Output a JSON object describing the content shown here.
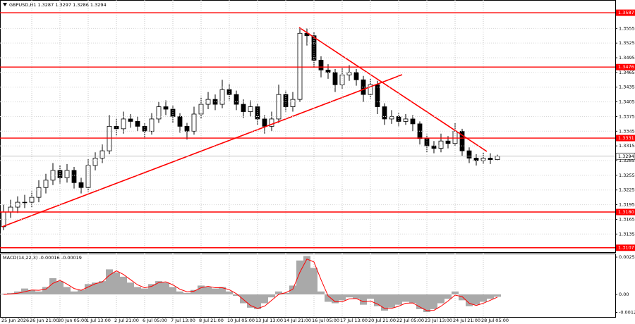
{
  "chart_data": [
    {
      "type": "candlestick",
      "title": "GBPUSD,H1  1.3287 1.3297 1.3286 1.3294",
      "categories": [
        "25 Jun 2026",
        null,
        null,
        null,
        "26 Jun 21:00",
        null,
        null,
        null,
        "30 Jun 05:00",
        null,
        null,
        null,
        "1 Jul 13:00",
        null,
        null,
        null,
        "2 Jul 21:00",
        null,
        null,
        null,
        "6 Jul 05:00",
        null,
        null,
        null,
        "7 Jul 13:00",
        null,
        null,
        null,
        "8 Jul 21:00",
        null,
        null,
        null,
        "10 Jul 05:00",
        null,
        null,
        null,
        "13 Jul 13:00",
        null,
        null,
        null,
        "14 Jul 21:00",
        null,
        null,
        null,
        "16 Jul 05:00",
        null,
        null,
        null,
        "17 Jul 13:00",
        null,
        null,
        null,
        "20 Jul 21:00",
        null,
        null,
        null,
        "22 Jul 05:00",
        null,
        null,
        null,
        "23 Jul 13:00",
        null,
        null,
        null,
        "24 Jul 21:00",
        null,
        null,
        null,
        "28 Jul 05:00",
        null,
        null
      ],
      "open": [
        1.315,
        1.318,
        1.319,
        1.32,
        1.32,
        1.321,
        1.323,
        1.3245,
        1.3265,
        1.325,
        1.3265,
        1.324,
        1.323,
        1.3275,
        1.329,
        1.3305,
        1.3355,
        1.335,
        1.337,
        1.3365,
        1.3355,
        1.3345,
        1.337,
        1.3395,
        1.339,
        1.3375,
        1.3355,
        1.3345,
        1.338,
        1.34,
        1.341,
        1.34,
        1.343,
        1.342,
        1.34,
        1.3385,
        1.3395,
        1.337,
        1.3355,
        1.337,
        1.342,
        1.3395,
        1.341,
        1.3545,
        1.354,
        1.349,
        1.347,
        1.3465,
        1.344,
        1.346,
        1.3465,
        1.345,
        1.342,
        1.344,
        1.3395,
        1.337,
        1.3375,
        1.3365,
        1.337,
        1.336,
        1.333,
        1.3315,
        1.331,
        1.3325,
        1.332,
        1.3345,
        1.3305,
        1.329,
        1.3285,
        1.329,
        1.3287
      ],
      "high": [
        1.3195,
        1.3205,
        1.3212,
        1.3215,
        1.3222,
        1.3245,
        1.3258,
        1.328,
        1.3275,
        1.3278,
        1.3272,
        1.325,
        1.3288,
        1.3302,
        1.3318,
        1.3378,
        1.3372,
        1.3385,
        1.338,
        1.3375,
        1.3362,
        1.3382,
        1.3405,
        1.3408,
        1.3398,
        1.3382,
        1.3362,
        1.3395,
        1.3415,
        1.3425,
        1.342,
        1.345,
        1.3442,
        1.3428,
        1.341,
        1.3408,
        1.3402,
        1.3378,
        1.3385,
        1.344,
        1.3428,
        1.3425,
        1.3557,
        1.3555,
        1.3548,
        1.3498,
        1.3482,
        1.3472,
        1.3475,
        1.348,
        1.3472,
        1.3458,
        1.3452,
        1.3448,
        1.3402,
        1.3388,
        1.3382,
        1.338,
        1.3378,
        1.3365,
        1.3338,
        1.3325,
        1.334,
        1.3335,
        1.3362,
        1.335,
        1.3312,
        1.3298,
        1.3302,
        1.33,
        1.3297
      ],
      "low": [
        1.3143,
        1.3168,
        1.3178,
        1.3188,
        1.319,
        1.32,
        1.3218,
        1.3235,
        1.3238,
        1.324,
        1.3228,
        1.3218,
        1.3222,
        1.3265,
        1.328,
        1.3298,
        1.3335,
        1.334,
        1.3352,
        1.3345,
        1.333,
        1.3338,
        1.3362,
        1.3378,
        1.3362,
        1.3342,
        1.3328,
        1.3338,
        1.337,
        1.339,
        1.3388,
        1.3392,
        1.3408,
        1.3388,
        1.3372,
        1.3375,
        1.3358,
        1.334,
        1.3345,
        1.3362,
        1.3385,
        1.3385,
        1.3405,
        1.352,
        1.3475,
        1.3455,
        1.3452,
        1.3425,
        1.3432,
        1.3448,
        1.3438,
        1.3405,
        1.3412,
        1.338,
        1.3358,
        1.336,
        1.3355,
        1.3358,
        1.3345,
        1.3318,
        1.3302,
        1.33,
        1.3302,
        1.331,
        1.3315,
        1.3295,
        1.328,
        1.3275,
        1.3278,
        1.3278,
        1.3286
      ],
      "close": [
        1.318,
        1.319,
        1.32,
        1.32,
        1.321,
        1.323,
        1.3245,
        1.3265,
        1.325,
        1.3265,
        1.324,
        1.323,
        1.3275,
        1.329,
        1.3305,
        1.3355,
        1.335,
        1.337,
        1.3365,
        1.3355,
        1.3345,
        1.337,
        1.3395,
        1.339,
        1.3375,
        1.3355,
        1.3345,
        1.338,
        1.34,
        1.341,
        1.34,
        1.343,
        1.342,
        1.34,
        1.3385,
        1.3395,
        1.337,
        1.3355,
        1.337,
        1.342,
        1.3395,
        1.341,
        1.3545,
        1.354,
        1.349,
        1.347,
        1.3465,
        1.344,
        1.346,
        1.3465,
        1.345,
        1.342,
        1.344,
        1.3395,
        1.337,
        1.3375,
        1.3365,
        1.337,
        1.336,
        1.333,
        1.3315,
        1.331,
        1.3325,
        1.332,
        1.3345,
        1.3305,
        1.329,
        1.3285,
        1.329,
        1.3287,
        1.3294
      ],
      "color": "#000000",
      "ylim": [
        1.3098,
        1.3613
      ],
      "yticks": [
        1.3555,
        1.3525,
        1.3495,
        1.3465,
        1.3435,
        1.3405,
        1.3375,
        1.3345,
        1.3315,
        1.3285,
        1.3255,
        1.3225,
        1.3195,
        1.3165,
        1.3135
      ],
      "levels": [
        1.3587,
        1.3476,
        1.3331,
        {
          "value": 1.318,
          "label": "1.3180"
        },
        1.3107
      ],
      "level_color": "#ff0000",
      "grid": true
    },
    {
      "type": "macd",
      "title": "MACD(14,22,3) -0.00016 -0.00019",
      "histogram": [
        5e-05,
        0.0001,
        0.0002,
        0.0004,
        0.0003,
        0.0002,
        0.0005,
        0.0011,
        0.0009,
        0.0005,
        0.0002,
        0.0003,
        0.0007,
        0.0008,
        0.0009,
        0.0017,
        0.0015,
        0.0012,
        0.0008,
        0.0005,
        0.0004,
        0.0007,
        0.0009,
        0.0008,
        0.0005,
        0.0002,
        0.0001,
        0.0003,
        0.0006,
        0.0005,
        0.0004,
        0.0005,
        0.0002,
        -0.0001,
        -0.0006,
        -0.0009,
        -0.001,
        -0.0006,
        -0.0002,
        0.0002,
        0.0001,
        0.0006,
        0.0023,
        0.0026,
        0.0018,
        0.0002,
        -0.0005,
        -0.0006,
        -0.0004,
        -0.0002,
        -0.0003,
        -0.0007,
        -0.0003,
        -0.0008,
        -0.0011,
        -0.0009,
        -0.0007,
        -0.0005,
        -0.0006,
        -0.001,
        -0.0012,
        -0.001,
        -0.0006,
        -0.0003,
        0.0002,
        -0.0004,
        -0.0008,
        -0.0007,
        -0.0005,
        -0.0003,
        -0.00016
      ],
      "signal": [
        0,
        3e-05,
        8e-05,
        0.00018,
        0.0003,
        0.00028,
        0.00035,
        0.00075,
        0.00095,
        0.0007,
        0.0004,
        0.00028,
        0.0005,
        0.00072,
        0.00085,
        0.0013,
        0.0016,
        0.00135,
        0.001,
        0.00065,
        0.00045,
        0.00055,
        0.0008,
        0.00085,
        0.00065,
        0.00035,
        0.00018,
        0.00022,
        0.00045,
        0.00055,
        0.00045,
        0.00045,
        0.00032,
        5e-05,
        -0.00035,
        -0.00075,
        -0.00095,
        -0.0008,
        -0.0004,
        0,
        0.00012,
        0.00035,
        0.0015,
        0.0024,
        0.0022,
        0.001,
        -0.0001,
        -0.0005,
        -0.0005,
        -0.0003,
        -0.00028,
        -0.0005,
        -0.00045,
        -0.00065,
        -0.00095,
        -0.00095,
        -0.0008,
        -0.0006,
        -0.00058,
        -0.00085,
        -0.0011,
        -0.00108,
        -0.0008,
        -0.00045,
        -5e-05,
        -0.00015,
        -0.0006,
        -0.00075,
        -0.0006,
        -0.0004,
        -0.00019
      ],
      "histogram_color": "#a9a9a9",
      "signal_color": "#ff0000",
      "ylim": [
        -0.00153,
        0.00277
      ],
      "yticks": [
        0.00253,
        {
          "value": 0,
          "label": "0.00"
        },
        -0.00122
      ]
    }
  ]
}
